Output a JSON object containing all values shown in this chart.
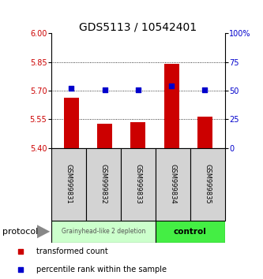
{
  "title": "GDS5113 / 10542401",
  "samples": [
    "GSM999831",
    "GSM999832",
    "GSM999833",
    "GSM999834",
    "GSM999835"
  ],
  "bar_values": [
    5.665,
    5.525,
    5.535,
    5.84,
    5.565
  ],
  "bar_baseline": 5.4,
  "percentile_values": [
    52,
    51,
    51,
    54,
    51
  ],
  "left_ylim": [
    5.4,
    6.0
  ],
  "left_yticks": [
    5.4,
    5.55,
    5.7,
    5.85,
    6.0
  ],
  "right_ylim": [
    0,
    100
  ],
  "right_yticks": [
    0,
    25,
    50,
    75,
    100
  ],
  "right_yticklabels": [
    "0",
    "25",
    "50",
    "75",
    "100%"
  ],
  "bar_color": "#cc0000",
  "dot_color": "#0000cc",
  "group1_label": "Grainyhead-like 2 depletion",
  "group2_label": "control",
  "group1_color": "#ccffcc",
  "group2_color": "#44ee44",
  "protocol_label": "protocol",
  "legend_bar_label": "transformed count",
  "legend_dot_label": "percentile rank within the sample",
  "tick_label_color_left": "#cc0000",
  "tick_label_color_right": "#0000cc",
  "sample_box_color": "#d3d3d3",
  "title_fontsize": 10,
  "bar_width": 0.45
}
